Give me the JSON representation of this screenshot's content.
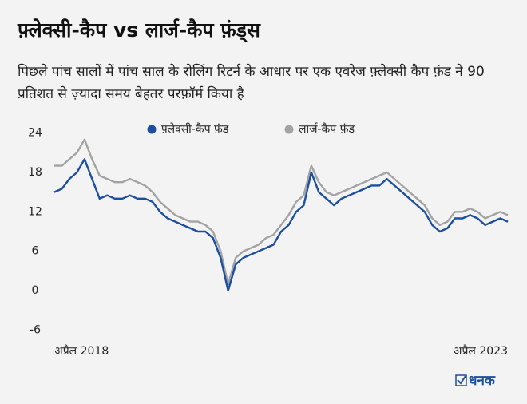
{
  "chart_data": {
    "type": "line",
    "title": "फ़्लेक्सी-कैप vs लार्ज-कैप फ़ंड्स",
    "subtitle": "पिछले पांच सालों में पांच साल के रोलिंग रिटर्न के आधार पर एक एवरेज फ़्लेक्सी कैप फ़ंड ने 90 प्रतिशत से ज़्यादा समय बेहतर परफ़ॉर्म किया है",
    "source": "धनक",
    "categories": [
      "अप्रैल 2018",
      null,
      null,
      null,
      null,
      null,
      null,
      null,
      null,
      null,
      null,
      null,
      null,
      null,
      null,
      null,
      null,
      null,
      null,
      null,
      null,
      null,
      null,
      null,
      null,
      null,
      null,
      null,
      null,
      null,
      null,
      null,
      null,
      null,
      null,
      null,
      null,
      null,
      null,
      null,
      null,
      null,
      null,
      null,
      null,
      null,
      null,
      null,
      null,
      null,
      null,
      null,
      null,
      null,
      null,
      null,
      null,
      null,
      null,
      null,
      "अप्रैल 2023"
    ],
    "series": [
      {
        "name": "लार्ज-कैप फ़ंड",
        "color": "#a3a3a3",
        "values": [
          19,
          19,
          20,
          21,
          23,
          20,
          17.5,
          17,
          16.5,
          16.5,
          17,
          16.5,
          16,
          15,
          13.5,
          12.5,
          11.5,
          11,
          10.5,
          10.5,
          10,
          9,
          6,
          1,
          5,
          6,
          6.5,
          7,
          8,
          8.5,
          10,
          11.5,
          13.5,
          14.5,
          19,
          16.5,
          15,
          14.5,
          15,
          15.5,
          16,
          16.5,
          17,
          17.5,
          18,
          17,
          16,
          15,
          14,
          13,
          11,
          10,
          10.5,
          12,
          12,
          12.5,
          12,
          11,
          11.5,
          12,
          11.5
        ]
      },
      {
        "name": "फ़्लेक्सी-कैप फ़ंड",
        "color": "#1d4f9e",
        "values": [
          15,
          15.5,
          17,
          18,
          20,
          17,
          14,
          14.5,
          14,
          14,
          14.5,
          14,
          14,
          13.5,
          12,
          11,
          10.5,
          10,
          9.5,
          9,
          9,
          8,
          5,
          0,
          4,
          5,
          5.5,
          6,
          6.5,
          7,
          9,
          10,
          12,
          13,
          18,
          15,
          14,
          13,
          14,
          14.5,
          15,
          15.5,
          16,
          16,
          17,
          16,
          15,
          14,
          13,
          12,
          10,
          9,
          9.5,
          11,
          11,
          11.5,
          11,
          10,
          10.5,
          11,
          10.5
        ]
      }
    ],
    "ylim": [
      -8,
      26
    ],
    "yticks": [
      -6,
      0,
      6,
      12,
      18,
      24
    ],
    "grid": false,
    "legend": "top"
  }
}
